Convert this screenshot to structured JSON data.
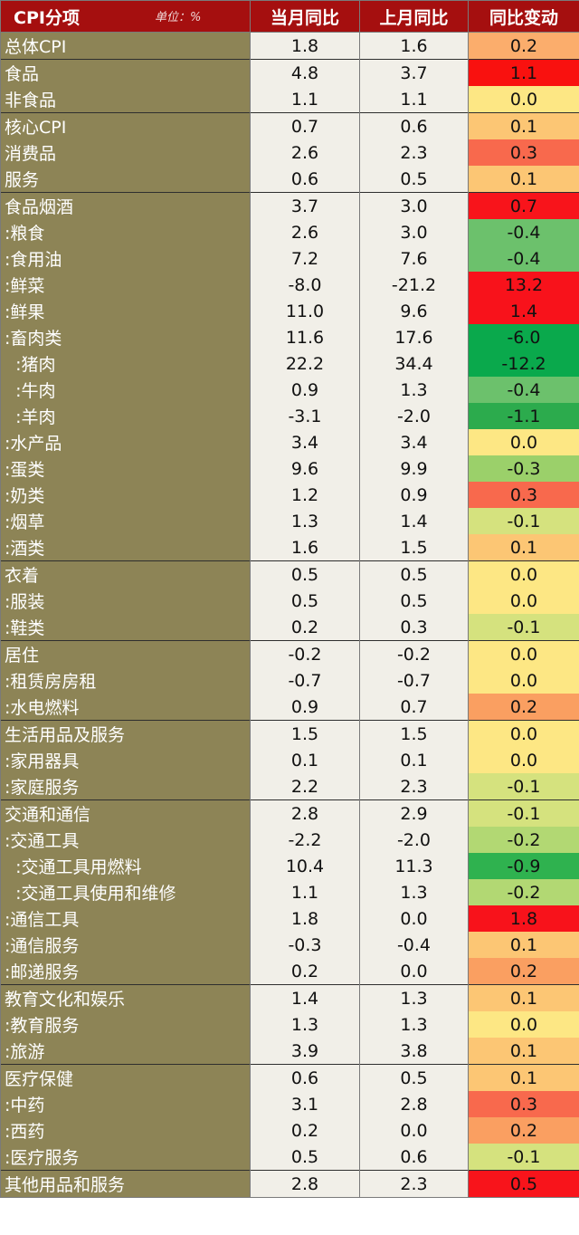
{
  "header": {
    "name_col": "CPI分项",
    "unit": "单位：%",
    "cur": "当月同比",
    "prev": "上月同比",
    "chg": "同比变动"
  },
  "rows": [
    {
      "name": "总体CPI",
      "cur": "1.8",
      "prev": "1.6",
      "chg": "0.2",
      "color": "#fbad6c",
      "grp": true
    },
    {
      "name": "食品",
      "cur": "4.8",
      "prev": "3.7",
      "chg": "1.1",
      "color": "#f9110f",
      "grp": true
    },
    {
      "name": "非食品",
      "cur": "1.1",
      "prev": "1.1",
      "chg": "0.0",
      "color": "#fde784"
    },
    {
      "name": "核心CPI",
      "cur": "0.7",
      "prev": "0.6",
      "chg": "0.1",
      "color": "#fcc674",
      "grp": true
    },
    {
      "name": "消费品",
      "cur": "2.6",
      "prev": "2.3",
      "chg": "0.3",
      "color": "#f8694d"
    },
    {
      "name": "服务",
      "cur": "0.6",
      "prev": "0.5",
      "chg": "0.1",
      "color": "#fcc674"
    },
    {
      "name": "食品烟酒",
      "cur": "3.7",
      "prev": "3.0",
      "chg": "0.7",
      "color": "#f8141b",
      "grp": true
    },
    {
      "name": ":粮食",
      "cur": "2.6",
      "prev": "3.0",
      "chg": "-0.4",
      "color": "#6cc16c"
    },
    {
      "name": ":食用油",
      "cur": "7.2",
      "prev": "7.6",
      "chg": "-0.4",
      "color": "#6cc16c"
    },
    {
      "name": ":鲜菜",
      "cur": "-8.0",
      "prev": "-21.2",
      "chg": "13.2",
      "color": "#f8121b"
    },
    {
      "name": ":鲜果",
      "cur": "11.0",
      "prev": "9.6",
      "chg": "1.4",
      "color": "#f8121b"
    },
    {
      "name": ":畜肉类",
      "cur": "11.6",
      "prev": "17.6",
      "chg": "-6.0",
      "color": "#0aa94c"
    },
    {
      "name": "  :猪肉",
      "cur": "22.2",
      "prev": "34.4",
      "chg": "-12.2",
      "color": "#0aa94c"
    },
    {
      "name": "  :牛肉",
      "cur": "0.9",
      "prev": "1.3",
      "chg": "-0.4",
      "color": "#6cc16c"
    },
    {
      "name": "  :羊肉",
      "cur": "-3.1",
      "prev": "-2.0",
      "chg": "-1.1",
      "color": "#2cab4d"
    },
    {
      "name": ":水产品",
      "cur": "3.4",
      "prev": "3.4",
      "chg": "0.0",
      "color": "#fde784"
    },
    {
      "name": ":蛋类",
      "cur": "9.6",
      "prev": "9.9",
      "chg": "-0.3",
      "color": "#9bd06a"
    },
    {
      "name": ":奶类",
      "cur": "1.2",
      "prev": "0.9",
      "chg": "0.3",
      "color": "#f8694d"
    },
    {
      "name": ":烟草",
      "cur": "1.3",
      "prev": "1.4",
      "chg": "-0.1",
      "color": "#d5e27e"
    },
    {
      "name": ":酒类",
      "cur": "1.6",
      "prev": "1.5",
      "chg": "0.1",
      "color": "#fcc674"
    },
    {
      "name": "衣着",
      "cur": "0.5",
      "prev": "0.5",
      "chg": "0.0",
      "color": "#fde784",
      "grp": true
    },
    {
      "name": ":服装",
      "cur": "0.5",
      "prev": "0.5",
      "chg": "0.0",
      "color": "#fde784"
    },
    {
      "name": ":鞋类",
      "cur": "0.2",
      "prev": "0.3",
      "chg": "-0.1",
      "color": "#d5e27e"
    },
    {
      "name": "居住",
      "cur": "-0.2",
      "prev": "-0.2",
      "chg": "0.0",
      "color": "#fde784",
      "grp": true
    },
    {
      "name": ":租赁房房租",
      "cur": "-0.7",
      "prev": "-0.7",
      "chg": "0.0",
      "color": "#fde784"
    },
    {
      "name": ":水电燃料",
      "cur": "0.9",
      "prev": "0.7",
      "chg": "0.2",
      "color": "#fa9f61"
    },
    {
      "name": "生活用品及服务",
      "cur": "1.5",
      "prev": "1.5",
      "chg": "0.0",
      "color": "#fde784",
      "grp": true
    },
    {
      "name": ":家用器具",
      "cur": "0.1",
      "prev": "0.1",
      "chg": "0.0",
      "color": "#fde784"
    },
    {
      "name": ":家庭服务",
      "cur": "2.2",
      "prev": "2.3",
      "chg": "-0.1",
      "color": "#d5e27e"
    },
    {
      "name": "交通和通信",
      "cur": "2.8",
      "prev": "2.9",
      "chg": "-0.1",
      "color": "#d5e27e",
      "grp": true
    },
    {
      "name": ":交通工具",
      "cur": "-2.2",
      "prev": "-2.0",
      "chg": "-0.2",
      "color": "#b2d873"
    },
    {
      "name": "  :交通工具用燃料",
      "cur": "10.4",
      "prev": "11.3",
      "chg": "-0.9",
      "color": "#2fb24f"
    },
    {
      "name": "  :交通工具使用和维修",
      "cur": "1.1",
      "prev": "1.3",
      "chg": "-0.2",
      "color": "#b2d873"
    },
    {
      "name": ":通信工具",
      "cur": "1.8",
      "prev": "0.0",
      "chg": "1.8",
      "color": "#f8121b"
    },
    {
      "name": ":通信服务",
      "cur": "-0.3",
      "prev": "-0.4",
      "chg": "0.1",
      "color": "#fcc674"
    },
    {
      "name": ":邮递服务",
      "cur": "0.2",
      "prev": "0.0",
      "chg": "0.2",
      "color": "#fa9f61"
    },
    {
      "name": "教育文化和娱乐",
      "cur": "1.4",
      "prev": "1.3",
      "chg": "0.1",
      "color": "#fcc674",
      "grp": true
    },
    {
      "name": ":教育服务",
      "cur": "1.3",
      "prev": "1.3",
      "chg": "0.0",
      "color": "#fde784"
    },
    {
      "name": ":旅游",
      "cur": "3.9",
      "prev": "3.8",
      "chg": "0.1",
      "color": "#fcc674"
    },
    {
      "name": "医疗保健",
      "cur": "0.6",
      "prev": "0.5",
      "chg": "0.1",
      "color": "#fcc674",
      "grp": true
    },
    {
      "name": ":中药",
      "cur": "3.1",
      "prev": "2.8",
      "chg": "0.3",
      "color": "#f8694d"
    },
    {
      "name": ":西药",
      "cur": "0.2",
      "prev": "0.0",
      "chg": "0.2",
      "color": "#fa9f61"
    },
    {
      "name": ":医疗服务",
      "cur": "0.5",
      "prev": "0.6",
      "chg": "-0.1",
      "color": "#d5e27e"
    },
    {
      "name": "其他用品和服务",
      "cur": "2.8",
      "prev": "2.3",
      "chg": "0.5",
      "color": "#f8141b",
      "grp": true,
      "last": true
    }
  ]
}
